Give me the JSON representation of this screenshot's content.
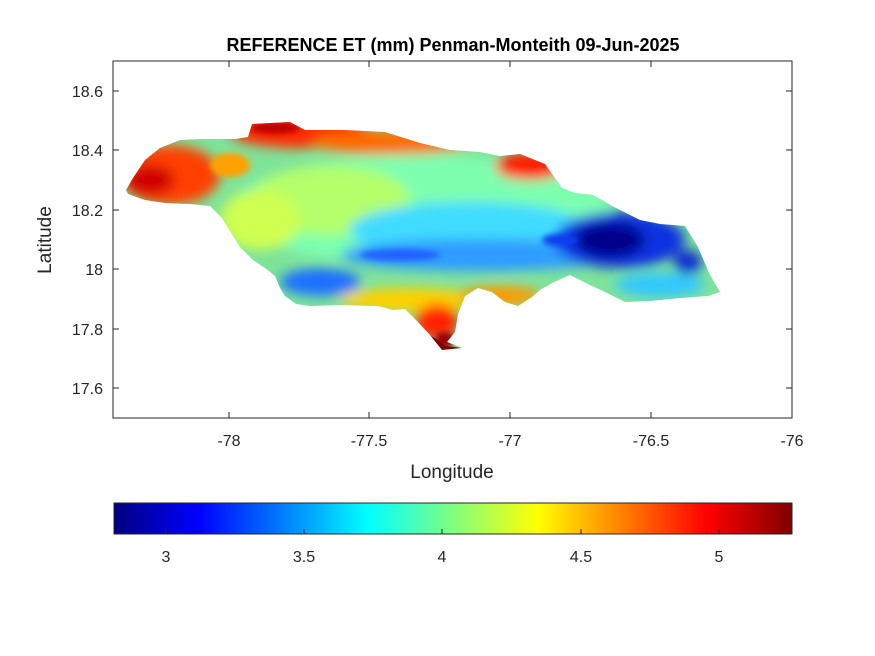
{
  "chart_data": {
    "type": "heatmap",
    "title": "REFERENCE ET (mm) Penman-Monteith 09-Jun-2025",
    "xlabel": "Longitude",
    "ylabel": "Latitude",
    "xlim": [
      -78.4,
      -76.0
    ],
    "ylim": [
      17.5,
      18.7
    ],
    "x_ticks": [
      -78,
      -77.5,
      -77,
      -76.5,
      -76
    ],
    "x_tick_labels": [
      "-78",
      "-77.5",
      "-77",
      "-76.5",
      "-76"
    ],
    "y_ticks": [
      17.6,
      17.8,
      18,
      18.2,
      18.4,
      18.6
    ],
    "y_tick_labels": [
      "17.6",
      "17.8",
      "18",
      "18.2",
      "18.4",
      "18.6"
    ],
    "grid": false,
    "colormap": "jet",
    "colorbar": {
      "orientation": "horizontal",
      "location": "bottom",
      "range": [
        2.8,
        5.25
      ],
      "ticks": [
        3,
        3.5,
        4,
        4.5,
        5
      ],
      "tick_labels": [
        "3",
        "3.5",
        "4",
        "4.5",
        "5"
      ]
    },
    "region": "Jamaica",
    "value_summary": {
      "min_approx": 2.9,
      "max_approx": 5.2,
      "high_values": "north coast, western end and southern coastal strip near -77.2 (≈4.8–5.2 mm)",
      "low_values": "east-central interior around -76.7 to -76.5, 18.0–18.1 (≈2.9–3.3 mm)",
      "mid_values": "central interior ≈3.6–4.2 mm"
    }
  }
}
